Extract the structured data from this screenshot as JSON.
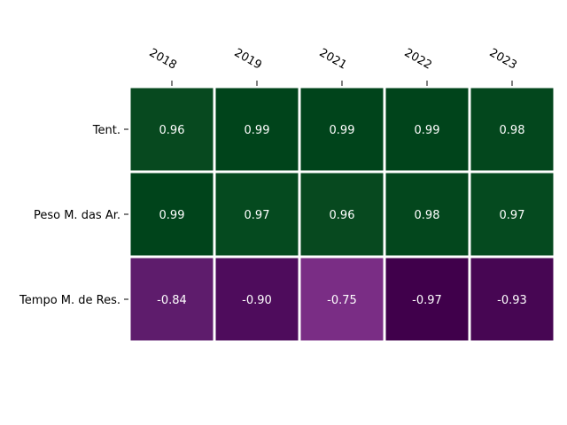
{
  "chart_data": {
    "type": "heatmap",
    "title": "",
    "xlabel": "",
    "ylabel": "",
    "x_categories": [
      "2018",
      "2019",
      "2021",
      "2022",
      "2023"
    ],
    "y_categories": [
      "Tent.",
      "Peso M. das Ar.",
      "Tempo M. de Res."
    ],
    "values": [
      [
        0.96,
        0.99,
        0.99,
        0.99,
        0.98
      ],
      [
        0.99,
        0.97,
        0.96,
        0.98,
        0.97
      ],
      [
        -0.84,
        -0.9,
        -0.75,
        -0.97,
        -0.93
      ]
    ],
    "value_labels": [
      [
        "0.96",
        "0.99",
        "0.99",
        "0.99",
        "0.98"
      ],
      [
        "0.99",
        "0.97",
        "0.96",
        "0.98",
        "0.97"
      ],
      [
        "-0.84",
        "-0.90",
        "-0.75",
        "-0.97",
        "-0.93"
      ]
    ],
    "x_ticks_position": "top",
    "x_tick_rotation": "rotated",
    "grid": false,
    "legend": "none",
    "colorscale": {
      "name": "PRGn",
      "range": [
        -1,
        1
      ]
    },
    "cell_colors": [
      [
        "#07491f",
        "#00441b",
        "#00441b",
        "#00441b",
        "#03471d"
      ],
      [
        "#00441b",
        "#054a1f",
        "#07491f",
        "#03471d",
        "#054a1f"
      ],
      [
        "#5e1c6c",
        "#4e0c5c",
        "#7a2d85",
        "#40004b",
        "#470653"
      ]
    ],
    "text_color": "#ffffff",
    "cell_border_color": "#ffffff"
  }
}
